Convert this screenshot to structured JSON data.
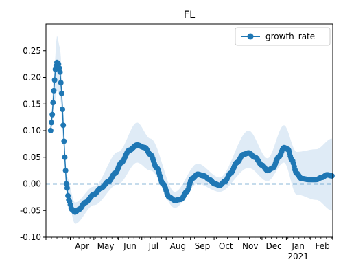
{
  "chart_data": {
    "type": "line",
    "title": "FL",
    "x_start": "2020-03-07",
    "x_end": "2021-02-28",
    "xlim": [
      "2020-03-01",
      "2021-03-01"
    ],
    "ylim": [
      -0.1,
      0.3
    ],
    "yticks": [
      "-0.10",
      "-0.05",
      "0.00",
      "0.05",
      "0.10",
      "0.15",
      "0.20",
      "0.25"
    ],
    "xtick_labels": [
      "Apr",
      "May",
      "Jun",
      "Jul",
      "Aug",
      "Sep",
      "Oct",
      "Nov",
      "Dec",
      "Jan",
      "Feb"
    ],
    "year_label": "2021",
    "reference_line": 0.0,
    "legend_position": "upper right",
    "colors": {
      "series": "#1f77b4",
      "band": "#dce9f5",
      "reference": "#1f77b4"
    },
    "series": [
      {
        "name": "growth_rate",
        "anchors": [
          [
            "2020-03-07",
            0.1
          ],
          [
            "2020-03-09",
            0.13
          ],
          [
            "2020-03-11",
            0.175
          ],
          [
            "2020-03-13",
            0.215
          ],
          [
            "2020-03-15",
            0.228
          ],
          [
            "2020-03-17",
            0.225
          ],
          [
            "2020-03-19",
            0.21
          ],
          [
            "2020-03-21",
            0.17
          ],
          [
            "2020-03-23",
            0.11
          ],
          [
            "2020-03-25",
            0.05
          ],
          [
            "2020-03-27",
            0.0
          ],
          [
            "2020-03-30",
            -0.03
          ],
          [
            "2020-04-03",
            -0.048
          ],
          [
            "2020-04-07",
            -0.053
          ],
          [
            "2020-04-12",
            -0.048
          ],
          [
            "2020-04-20",
            -0.035
          ],
          [
            "2020-05-01",
            -0.02
          ],
          [
            "2020-05-10",
            -0.008
          ],
          [
            "2020-05-20",
            0.005
          ],
          [
            "2020-05-28",
            0.02
          ],
          [
            "2020-06-05",
            0.04
          ],
          [
            "2020-06-15",
            0.063
          ],
          [
            "2020-06-25",
            0.073
          ],
          [
            "2020-07-05",
            0.068
          ],
          [
            "2020-07-12",
            0.055
          ],
          [
            "2020-07-20",
            0.03
          ],
          [
            "2020-07-28",
            0.0
          ],
          [
            "2020-08-05",
            -0.025
          ],
          [
            "2020-08-12",
            -0.031
          ],
          [
            "2020-08-20",
            -0.029
          ],
          [
            "2020-08-27",
            -0.015
          ],
          [
            "2020-09-03",
            0.01
          ],
          [
            "2020-09-10",
            0.018
          ],
          [
            "2020-09-18",
            0.015
          ],
          [
            "2020-09-25",
            0.008
          ],
          [
            "2020-10-02",
            0.0
          ],
          [
            "2020-10-08",
            -0.003
          ],
          [
            "2020-10-15",
            0.005
          ],
          [
            "2020-10-22",
            0.02
          ],
          [
            "2020-10-30",
            0.04
          ],
          [
            "2020-11-07",
            0.055
          ],
          [
            "2020-11-14",
            0.058
          ],
          [
            "2020-11-22",
            0.05
          ],
          [
            "2020-12-01",
            0.035
          ],
          [
            "2020-12-08",
            0.025
          ],
          [
            "2020-12-15",
            0.03
          ],
          [
            "2020-12-22",
            0.05
          ],
          [
            "2020-12-29",
            0.068
          ],
          [
            "2021-01-03",
            0.065
          ],
          [
            "2021-01-08",
            0.045
          ],
          [
            "2021-01-14",
            0.02
          ],
          [
            "2021-01-20",
            0.01
          ],
          [
            "2021-01-30",
            0.008
          ],
          [
            "2021-02-08",
            0.008
          ],
          [
            "2021-02-15",
            0.012
          ],
          [
            "2021-02-22",
            0.017
          ],
          [
            "2021-02-28",
            0.015
          ]
        ],
        "band": [
          [
            "2020-03-07",
            0.095,
            0.105
          ],
          [
            "2020-03-11",
            0.145,
            0.205
          ],
          [
            "2020-03-15",
            0.175,
            0.278
          ],
          [
            "2020-03-19",
            0.165,
            0.255
          ],
          [
            "2020-03-23",
            0.08,
            0.14
          ],
          [
            "2020-03-27",
            -0.015,
            0.015
          ],
          [
            "2020-04-07",
            -0.075,
            -0.035
          ],
          [
            "2020-05-01",
            -0.04,
            -0.005
          ],
          [
            "2020-06-01",
            0.0,
            0.06
          ],
          [
            "2020-06-25",
            0.04,
            0.115
          ],
          [
            "2020-07-12",
            0.025,
            0.085
          ],
          [
            "2020-08-12",
            -0.045,
            -0.015
          ],
          [
            "2020-09-10",
            0.0,
            0.038
          ],
          [
            "2020-10-08",
            -0.015,
            0.012
          ],
          [
            "2020-11-14",
            0.03,
            0.1
          ],
          [
            "2020-12-08",
            0.005,
            0.048
          ],
          [
            "2020-12-29",
            0.04,
            0.11
          ],
          [
            "2021-01-14",
            -0.02,
            0.06
          ],
          [
            "2021-02-08",
            -0.03,
            0.065
          ],
          [
            "2021-02-28",
            -0.05,
            0.085
          ]
        ]
      }
    ]
  }
}
